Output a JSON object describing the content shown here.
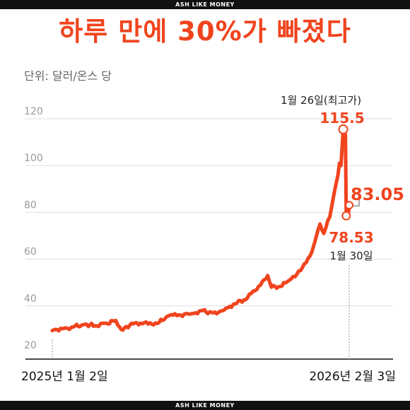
{
  "brand": {
    "top": "ASH LIKE MONEY",
    "bottom": "ASH LIKE MONEY"
  },
  "headline": "하루 만에 30%가 빠졌다",
  "unit_label": "단위: 달러/온스 당",
  "colors": {
    "accent": "#f0441e",
    "grid": "#dddddd",
    "tick": "#999999"
  },
  "chart_data": {
    "type": "line",
    "title": "하루 만에 30%가 빠졌다",
    "unit": "단위: 달러/온스 당",
    "ylim": [
      20,
      130
    ],
    "yticks": [
      20,
      40,
      60,
      80,
      100,
      120
    ],
    "grid": true,
    "x_start_label": "2025년 1월 2일",
    "x_end_label": "2026년 2월 3일",
    "x_range": [
      "2025-01-02",
      "2026-02-03"
    ],
    "series": [
      {
        "color": "#f0441e",
        "points": [
          [
            "2025-01-02",
            29.5
          ],
          [
            "2025-01-15",
            30.3
          ],
          [
            "2025-01-30",
            31.0
          ],
          [
            "2025-02-15",
            32.2
          ],
          [
            "2025-02-28",
            31.5
          ],
          [
            "2025-03-15",
            32.6
          ],
          [
            "2025-03-28",
            33.8
          ],
          [
            "2025-04-04",
            30.0
          ],
          [
            "2025-04-11",
            31.2
          ],
          [
            "2025-04-25",
            32.8
          ],
          [
            "2025-05-10",
            32.3
          ],
          [
            "2025-05-25",
            33.0
          ],
          [
            "2025-06-05",
            35.6
          ],
          [
            "2025-06-20",
            36.2
          ],
          [
            "2025-07-05",
            36.5
          ],
          [
            "2025-07-20",
            38.0
          ],
          [
            "2025-08-05",
            37.0
          ],
          [
            "2025-08-20",
            38.3
          ],
          [
            "2025-09-01",
            40.7
          ],
          [
            "2025-09-15",
            42.5
          ],
          [
            "2025-09-30",
            46.5
          ],
          [
            "2025-10-10",
            50.5
          ],
          [
            "2025-10-17",
            53.0
          ],
          [
            "2025-10-22",
            48.0
          ],
          [
            "2025-11-05",
            48.5
          ],
          [
            "2025-11-15",
            51.0
          ],
          [
            "2025-11-25",
            53.5
          ],
          [
            "2025-12-05",
            58.0
          ],
          [
            "2025-12-15",
            63.0
          ],
          [
            "2025-12-26",
            75.0
          ],
          [
            "2025-12-31",
            71.0
          ],
          [
            "2026-01-08",
            78.0
          ],
          [
            "2026-01-12",
            85.0
          ],
          [
            "2026-01-15",
            90.0
          ],
          [
            "2026-01-19",
            96.0
          ],
          [
            "2026-01-21",
            101.0
          ],
          [
            "2026-01-23",
            100.0
          ],
          [
            "2026-01-26",
            115.5
          ],
          [
            "2026-01-28",
            114.0
          ],
          [
            "2026-01-29",
            113.0
          ],
          [
            "2026-01-30",
            78.53
          ],
          [
            "2026-02-02",
            79.5
          ],
          [
            "2026-02-03",
            83.05
          ]
        ]
      }
    ],
    "annotations": [
      {
        "date": "2026-01-26",
        "value": 115.5,
        "date_label": "1월 26일(최고가)",
        "value_label": "115.5"
      },
      {
        "date": "2026-01-30",
        "value": 78.53,
        "date_label": "1월 30일",
        "value_label": "78.53"
      },
      {
        "date": "2026-02-03",
        "value": 83.05,
        "value_label": "83.05"
      }
    ]
  }
}
